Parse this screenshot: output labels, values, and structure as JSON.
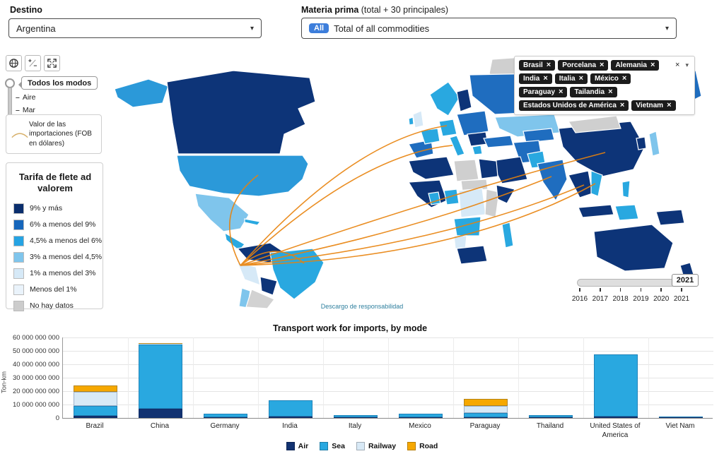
{
  "icons": {
    "caret": "▾",
    "close": "×",
    "plus": "+",
    "minus": "−",
    "dash": "–",
    "names": [
      "globe-icon",
      "zoom-plus-minus-icon",
      "fullscreen-icon",
      "chevron-down-icon",
      "close-icon",
      "flow-arc-icon"
    ]
  },
  "filters": {
    "destination": {
      "label": "Destino",
      "value": "Argentina"
    },
    "commodity": {
      "label": "Materia prima",
      "sublabel": "(total + 30 principales)",
      "badge": "All",
      "value": "Total of all commodities"
    }
  },
  "map": {
    "mode_slider": {
      "selected": "Todos los modos",
      "options": [
        "Aire",
        "Mar"
      ]
    },
    "flow_legend": {
      "text": "Valor de las importaciones (FOB en dólares)"
    },
    "choropleth_legend": {
      "title": "Tarifa de flete ad valorem",
      "items": [
        {
          "label": "9% y más",
          "color": "#0a2e6d"
        },
        {
          "label": "6% a menos del 9%",
          "color": "#1666bb"
        },
        {
          "label": "4,5% a menos del 6%",
          "color": "#25a3e3"
        },
        {
          "label": "3% a menos del 4,5%",
          "color": "#7fc5ec"
        },
        {
          "label": "1% a menos del 3%",
          "color": "#d6e9f7"
        },
        {
          "label": "Menos del 1%",
          "color": "#eaf3fb"
        },
        {
          "label": "No hay datos",
          "color": "#cccccc"
        }
      ]
    },
    "selected_partners": [
      "Brasil",
      "Porcelana",
      "Alemania",
      "India",
      "Italia",
      "México",
      "Paraguay",
      "Tailandia",
      "Estados Unidos de América",
      "Vietnam"
    ],
    "disclaimer": "Descargo de responsabilidad",
    "year_slider": {
      "value": "2021",
      "ticks": [
        "2016",
        "2017",
        "2018",
        "2019",
        "2020",
        "2021"
      ]
    },
    "flow_color": "#e8820c"
  },
  "chart_data": {
    "type": "bar",
    "stacked": true,
    "title": "Transport work for imports, by mode",
    "ylabel": "Ton-km",
    "ylim": [
      0,
      60000000000
    ],
    "ytick_labels": [
      "0",
      "10 000 000 000",
      "20 000 000 000",
      "30 000 000 000",
      "40 000 000 000",
      "50 000 000 000",
      "60 000 000 000"
    ],
    "grid": true,
    "legend_position": "bottom",
    "categories": [
      "Brazil",
      "China",
      "Germany",
      "India",
      "Italy",
      "Mexico",
      "Paraguay",
      "Thailand",
      "United States of America",
      "Viet Nam"
    ],
    "series": [
      {
        "name": "Air",
        "color": "#123271",
        "values": [
          1500000000,
          7000000000,
          300000000,
          800000000,
          400000000,
          400000000,
          700000000,
          300000000,
          1000000000,
          700000000
        ]
      },
      {
        "name": "Sea",
        "color": "#29a8e0",
        "values": [
          7500000000,
          48000000000,
          3000000000,
          12500000000,
          1600000000,
          2600000000,
          3000000000,
          1700000000,
          46500000000,
          300000000
        ]
      },
      {
        "name": "Railway",
        "color": "#d8e9f6",
        "values": [
          10500000000,
          300000000,
          0,
          0,
          0,
          0,
          5500000000,
          0,
          0,
          0
        ]
      },
      {
        "name": "Road",
        "color": "#f6a800",
        "values": [
          4500000000,
          700000000,
          0,
          0,
          0,
          0,
          4800000000,
          0,
          0,
          0
        ]
      }
    ]
  }
}
